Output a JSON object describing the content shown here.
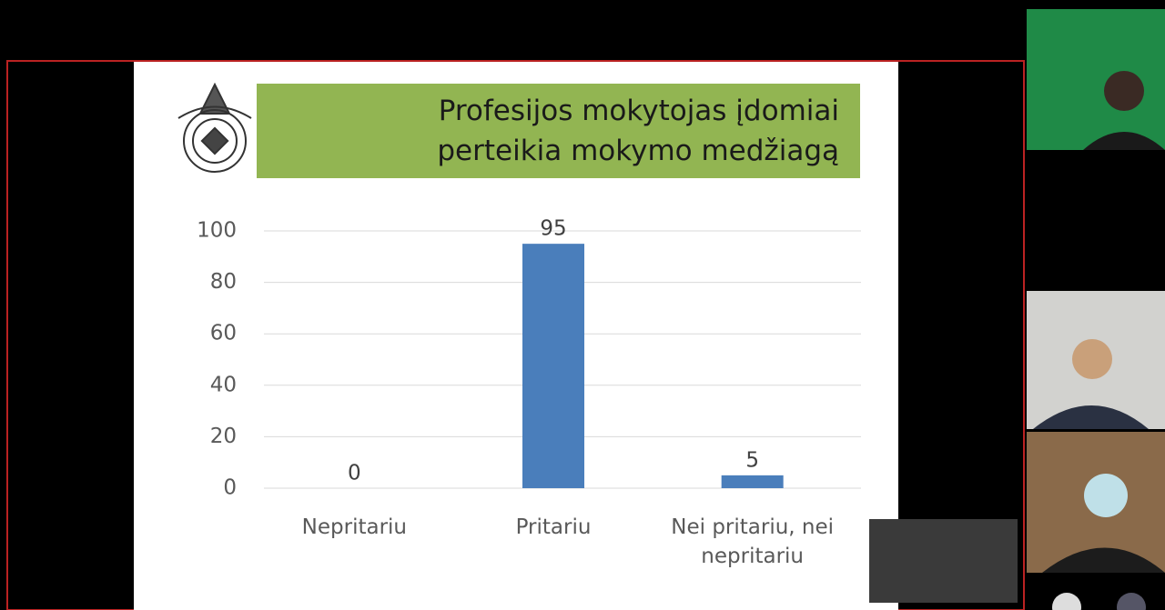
{
  "chart_data": {
    "type": "bar",
    "title": "Profesijos mokytojas įdomiai perteikia mokymo medžiagą",
    "categories": [
      "Nepritariu",
      "Pritariu",
      "Nei pritariu, nei nepritariu"
    ],
    "values": [
      0,
      95,
      5
    ],
    "color": "#4a7ebb",
    "ylim": [
      0,
      100
    ],
    "yticks": [
      0,
      20,
      40,
      60,
      80,
      100
    ],
    "grid": true
  }
}
